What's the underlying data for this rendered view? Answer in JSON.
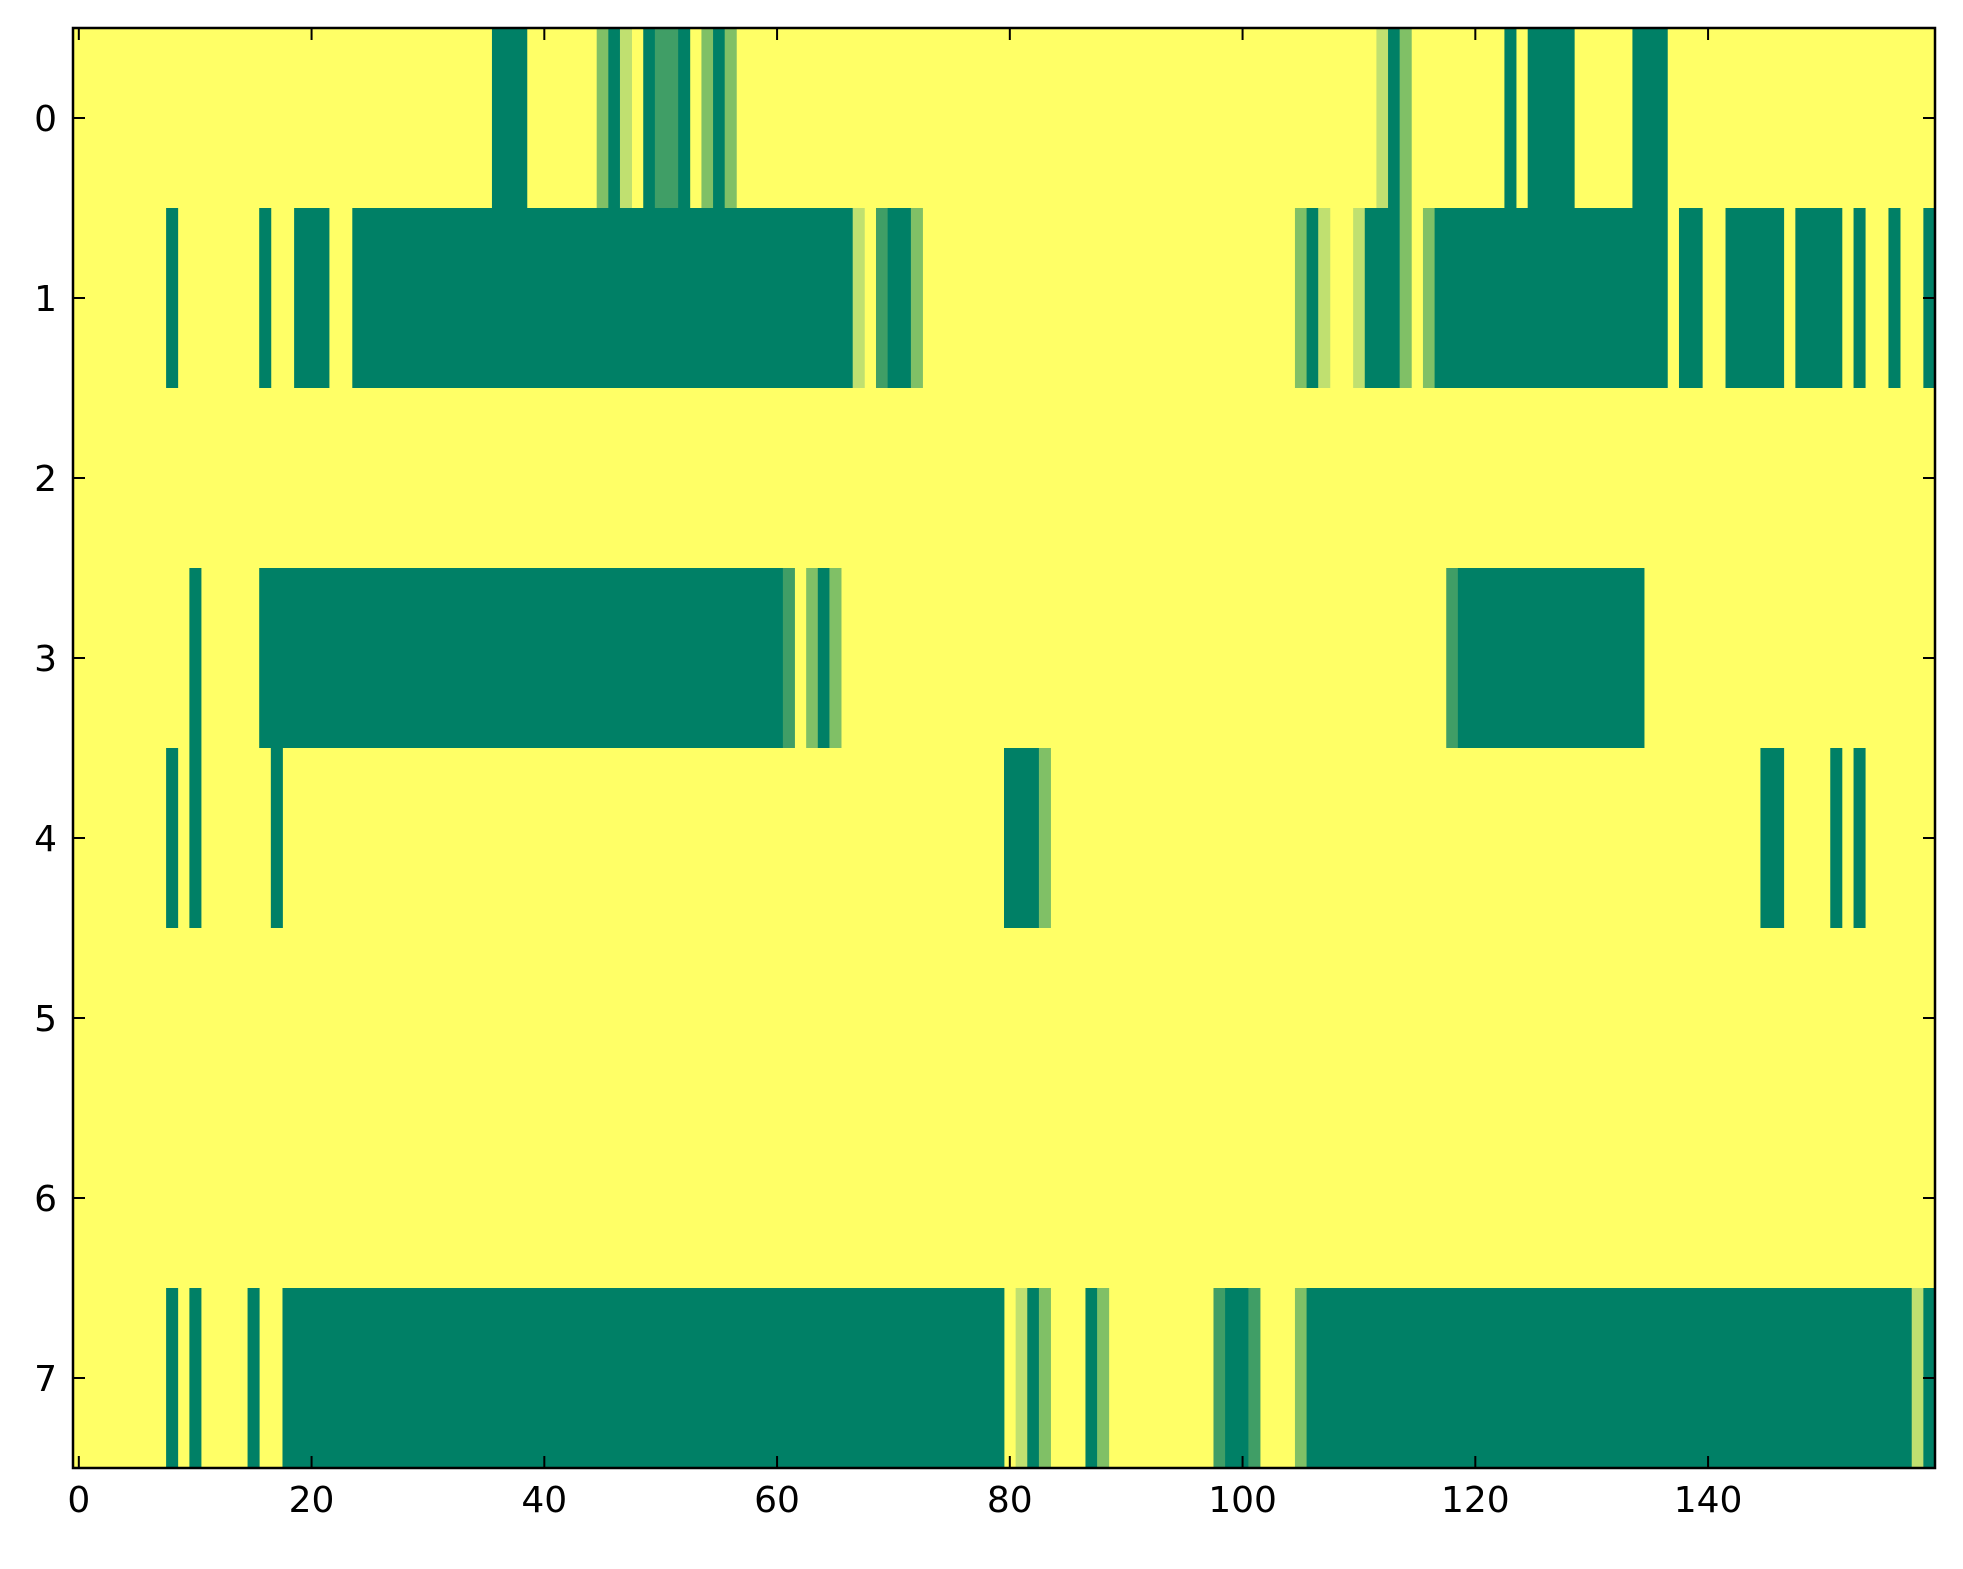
{
  "chart_data": {
    "type": "heatmap",
    "title": "",
    "xlabel": "",
    "ylabel": "",
    "xlim": [
      -0.5,
      159.5
    ],
    "ylim": [
      7.5,
      -0.5
    ],
    "x_ticks": [
      "0",
      "20",
      "40",
      "60",
      "80",
      "100",
      "120",
      "140"
    ],
    "x_tick_values": [
      0,
      20,
      40,
      60,
      80,
      100,
      120,
      140
    ],
    "y_ticks": [
      "0",
      "1",
      "2",
      "3",
      "4",
      "5",
      "6",
      "7"
    ],
    "y_tick_values": [
      0,
      1,
      2,
      3,
      4,
      5,
      6,
      7
    ],
    "n_columns": 160,
    "n_rows": 8,
    "colormap": "summer_r",
    "colors": {
      "low": "#ffff66",
      "level_0_25": "#c0e070",
      "level_0_5": "#80c066",
      "level_0_75": "#409e66",
      "high": "#008066"
    },
    "grid": false,
    "legend": "none",
    "value_note": "cells not listed have value 0",
    "rows": [
      {
        "row": 0,
        "segments": [
          {
            "start": 36,
            "end": 38,
            "value": 1
          },
          {
            "start": 45,
            "end": 45,
            "value": 0.5
          },
          {
            "start": 46,
            "end": 46,
            "value": 1
          },
          {
            "start": 47,
            "end": 47,
            "value": 0.25
          },
          {
            "start": 49,
            "end": 49,
            "value": 1
          },
          {
            "start": 50,
            "end": 51,
            "value": 0.75
          },
          {
            "start": 52,
            "end": 52,
            "value": 1
          },
          {
            "start": 54,
            "end": 54,
            "value": 0.5
          },
          {
            "start": 55,
            "end": 55,
            "value": 1
          },
          {
            "start": 56,
            "end": 56,
            "value": 0.5
          },
          {
            "start": 112,
            "end": 112,
            "value": 0.25
          },
          {
            "start": 113,
            "end": 113,
            "value": 1
          },
          {
            "start": 114,
            "end": 114,
            "value": 0.5
          },
          {
            "start": 123,
            "end": 123,
            "value": 1
          },
          {
            "start": 125,
            "end": 128,
            "value": 1
          },
          {
            "start": 134,
            "end": 136,
            "value": 1
          }
        ]
      },
      {
        "row": 1,
        "segments": [
          {
            "start": 8,
            "end": 8,
            "value": 1
          },
          {
            "start": 16,
            "end": 16,
            "value": 1
          },
          {
            "start": 19,
            "end": 21,
            "value": 1
          },
          {
            "start": 24,
            "end": 66,
            "value": 1
          },
          {
            "start": 67,
            "end": 67,
            "value": 0.25
          },
          {
            "start": 69,
            "end": 69,
            "value": 0.75
          },
          {
            "start": 70,
            "end": 71,
            "value": 1
          },
          {
            "start": 72,
            "end": 72,
            "value": 0.5
          },
          {
            "start": 105,
            "end": 105,
            "value": 0.5
          },
          {
            "start": 106,
            "end": 106,
            "value": 1
          },
          {
            "start": 107,
            "end": 107,
            "value": 0.25
          },
          {
            "start": 110,
            "end": 110,
            "value": 0.25
          },
          {
            "start": 111,
            "end": 113,
            "value": 1
          },
          {
            "start": 114,
            "end": 114,
            "value": 0.5
          },
          {
            "start": 116,
            "end": 116,
            "value": 0.5
          },
          {
            "start": 117,
            "end": 136,
            "value": 1
          },
          {
            "start": 138,
            "end": 139,
            "value": 1
          },
          {
            "start": 142,
            "end": 146,
            "value": 1
          },
          {
            "start": 148,
            "end": 151,
            "value": 1
          },
          {
            "start": 153,
            "end": 153,
            "value": 1
          },
          {
            "start": 156,
            "end": 156,
            "value": 1
          },
          {
            "start": 159,
            "end": 159,
            "value": 1
          }
        ]
      },
      {
        "row": 2,
        "segments": []
      },
      {
        "row": 3,
        "segments": [
          {
            "start": 10,
            "end": 10,
            "value": 1
          },
          {
            "start": 16,
            "end": 60,
            "value": 1
          },
          {
            "start": 61,
            "end": 61,
            "value": 0.75
          },
          {
            "start": 63,
            "end": 63,
            "value": 0.5
          },
          {
            "start": 64,
            "end": 64,
            "value": 1
          },
          {
            "start": 65,
            "end": 65,
            "value": 0.5
          },
          {
            "start": 118,
            "end": 118,
            "value": 0.75
          },
          {
            "start": 119,
            "end": 134,
            "value": 1
          }
        ]
      },
      {
        "row": 4,
        "segments": [
          {
            "start": 8,
            "end": 8,
            "value": 1
          },
          {
            "start": 10,
            "end": 10,
            "value": 1
          },
          {
            "start": 17,
            "end": 17,
            "value": 1
          },
          {
            "start": 80,
            "end": 82,
            "value": 1
          },
          {
            "start": 83,
            "end": 83,
            "value": 0.5
          },
          {
            "start": 145,
            "end": 146,
            "value": 1
          },
          {
            "start": 151,
            "end": 151,
            "value": 1
          },
          {
            "start": 153,
            "end": 153,
            "value": 1
          }
        ]
      },
      {
        "row": 5,
        "segments": []
      },
      {
        "row": 6,
        "segments": []
      },
      {
        "row": 7,
        "segments": [
          {
            "start": 8,
            "end": 8,
            "value": 1
          },
          {
            "start": 10,
            "end": 10,
            "value": 1
          },
          {
            "start": 15,
            "end": 15,
            "value": 1
          },
          {
            "start": 18,
            "end": 79,
            "value": 1
          },
          {
            "start": 81,
            "end": 81,
            "value": 0.25
          },
          {
            "start": 82,
            "end": 82,
            "value": 1
          },
          {
            "start": 83,
            "end": 83,
            "value": 0.5
          },
          {
            "start": 87,
            "end": 87,
            "value": 1
          },
          {
            "start": 88,
            "end": 88,
            "value": 0.5
          },
          {
            "start": 98,
            "end": 98,
            "value": 0.75
          },
          {
            "start": 99,
            "end": 100,
            "value": 1
          },
          {
            "start": 101,
            "end": 101,
            "value": 0.75
          },
          {
            "start": 105,
            "end": 105,
            "value": 0.5
          },
          {
            "start": 106,
            "end": 157,
            "value": 1
          },
          {
            "start": 158,
            "end": 158,
            "value": 0.25
          },
          {
            "start": 159,
            "end": 159,
            "value": 1
          }
        ]
      }
    ]
  }
}
